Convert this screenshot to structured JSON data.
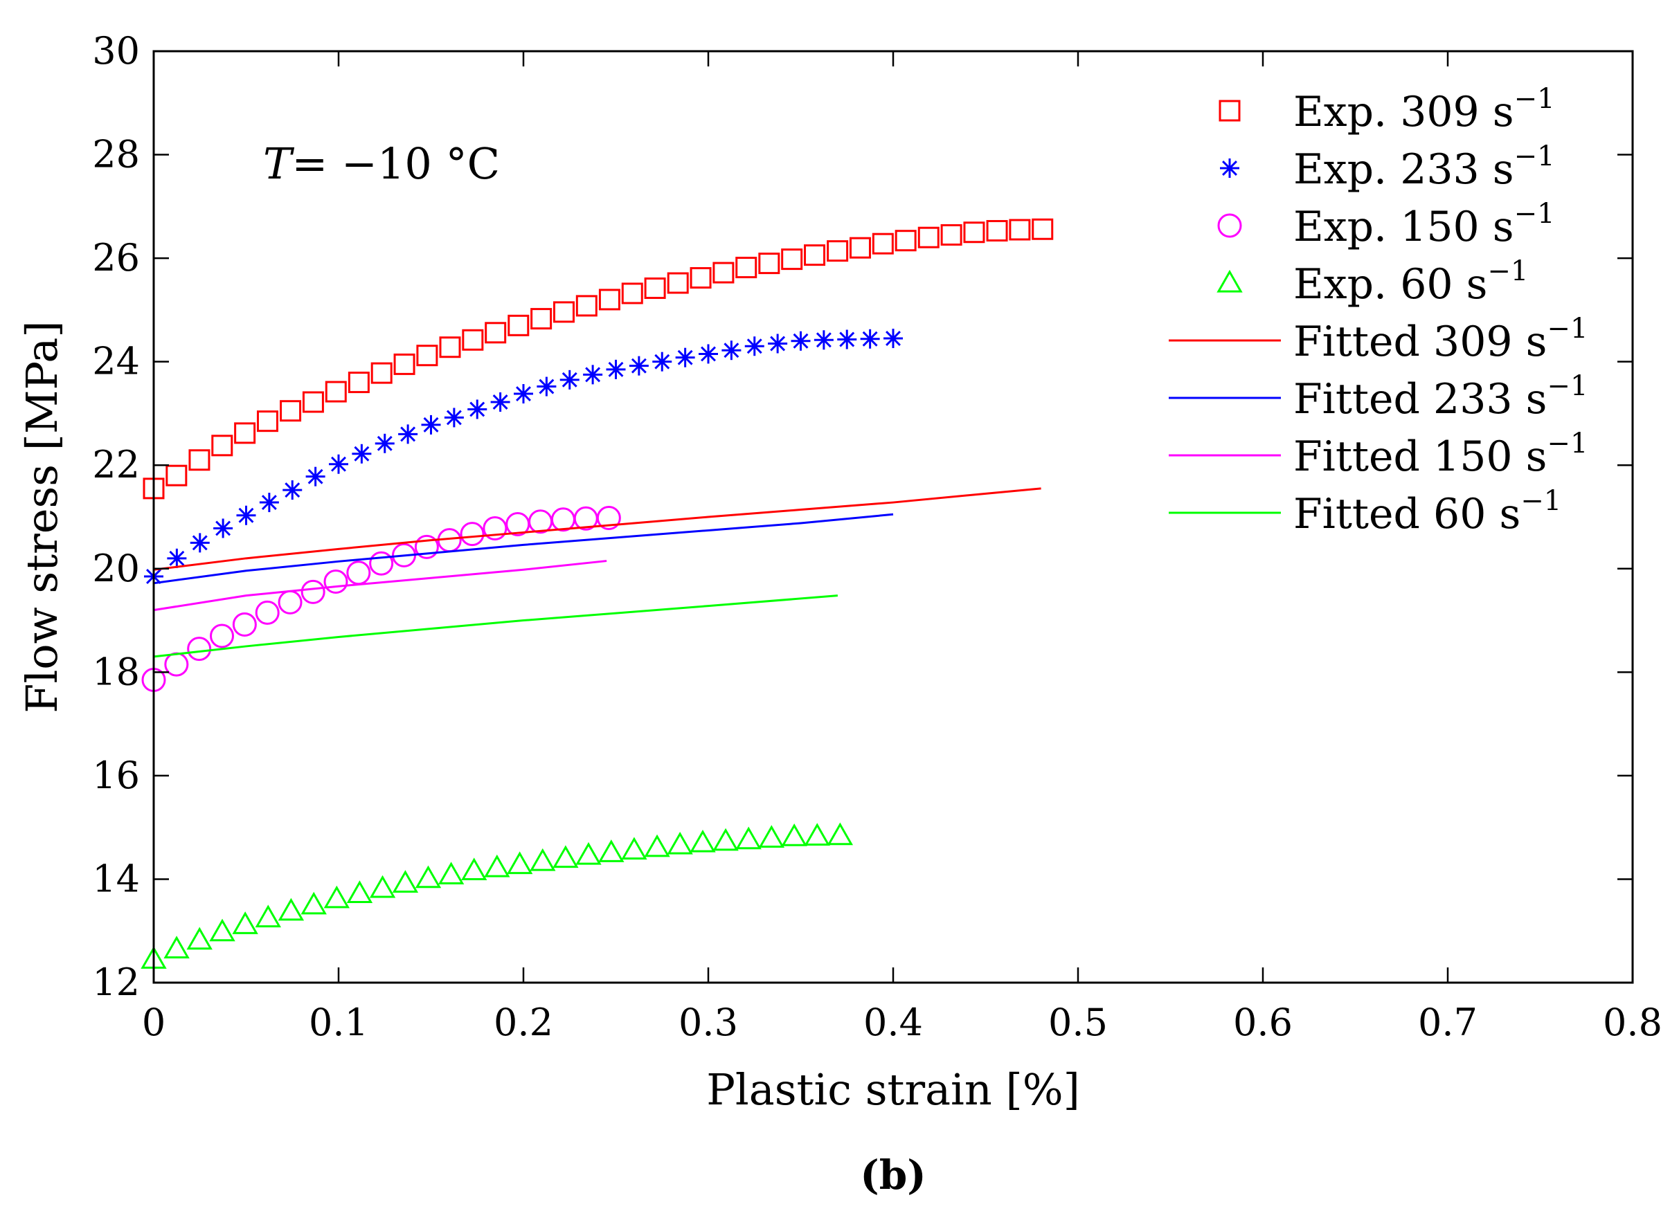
{
  "chart_data": {
    "type": "line",
    "title": "",
    "annotation": {
      "var": "T",
      "rest": "= −10 °C"
    },
    "caption": "(b)",
    "xlabel": "Plastic strain [%]",
    "ylabel": "Flow stress [MPa]",
    "xlim": [
      0,
      0.8
    ],
    "ylim": [
      12,
      30
    ],
    "xticks": [
      0,
      0.1,
      0.2,
      0.3,
      0.4,
      0.5,
      0.6,
      0.7,
      0.8
    ],
    "xtick_labels": [
      "0",
      "0.1",
      "0.2",
      "0.3",
      "0.4",
      "0.5",
      "0.6",
      "0.7",
      "0.8"
    ],
    "yticks": [
      12,
      14,
      16,
      18,
      20,
      22,
      24,
      26,
      28,
      30
    ],
    "ytick_labels": [
      "12",
      "14",
      "16",
      "18",
      "20",
      "22",
      "24",
      "26",
      "28",
      "30"
    ],
    "grid": false,
    "legend_position": "top-right",
    "series": [
      {
        "name": "Exp. 309 s−1",
        "legend_main": "Exp. 309 s",
        "legend_sup": "−1",
        "kind": "marker",
        "marker": "square",
        "color": "#ff0000",
        "x": [
          0,
          0.0123,
          0.0247,
          0.037,
          0.0493,
          0.0616,
          0.074,
          0.0863,
          0.0986,
          0.111,
          0.1233,
          0.1356,
          0.1479,
          0.1603,
          0.1726,
          0.1849,
          0.1973,
          0.2096,
          0.2219,
          0.2342,
          0.2466,
          0.2589,
          0.2712,
          0.2836,
          0.2959,
          0.3082,
          0.3205,
          0.3329,
          0.3452,
          0.3575,
          0.3699,
          0.3822,
          0.3945,
          0.4068,
          0.4192,
          0.4315,
          0.4438,
          0.4562,
          0.4685,
          0.4808
        ],
        "y": [
          21.55,
          21.8,
          22.1,
          22.38,
          22.62,
          22.85,
          23.05,
          23.22,
          23.42,
          23.6,
          23.78,
          23.95,
          24.12,
          24.28,
          24.42,
          24.56,
          24.7,
          24.83,
          24.96,
          25.08,
          25.2,
          25.32,
          25.42,
          25.52,
          25.62,
          25.72,
          25.82,
          25.9,
          25.98,
          26.06,
          26.14,
          26.2,
          26.28,
          26.34,
          26.4,
          26.45,
          26.5,
          26.53,
          26.55,
          26.56
        ]
      },
      {
        "name": "Exp. 233 s−1",
        "legend_main": "Exp. 233 s",
        "legend_sup": "−1",
        "kind": "marker",
        "marker": "asterisk",
        "color": "#0000ff",
        "x": [
          0,
          0.0125,
          0.025,
          0.0375,
          0.05,
          0.0625,
          0.075,
          0.0875,
          0.1,
          0.1125,
          0.125,
          0.1375,
          0.15,
          0.1625,
          0.175,
          0.1875,
          0.2,
          0.2125,
          0.225,
          0.2375,
          0.25,
          0.2625,
          0.275,
          0.2875,
          0.3,
          0.3125,
          0.325,
          0.3375,
          0.35,
          0.3625,
          0.375,
          0.3875,
          0.4
        ],
        "y": [
          19.85,
          20.2,
          20.5,
          20.78,
          21.03,
          21.28,
          21.52,
          21.78,
          22.02,
          22.22,
          22.42,
          22.6,
          22.78,
          22.92,
          23.08,
          23.22,
          23.38,
          23.52,
          23.65,
          23.75,
          23.85,
          23.92,
          24.0,
          24.08,
          24.15,
          24.22,
          24.3,
          24.35,
          24.4,
          24.42,
          24.43,
          24.44,
          24.45
        ]
      },
      {
        "name": "Exp. 150 s−1",
        "legend_main": "Exp. 150 s",
        "legend_sup": "−1",
        "kind": "marker",
        "marker": "circle",
        "color": "#ff00ff",
        "x": [
          0,
          0.0123,
          0.0246,
          0.0369,
          0.0492,
          0.0615,
          0.0738,
          0.0862,
          0.0985,
          0.1108,
          0.1231,
          0.1354,
          0.1477,
          0.16,
          0.1723,
          0.1846,
          0.1969,
          0.2092,
          0.2215,
          0.2338,
          0.2462
        ],
        "y": [
          17.85,
          18.15,
          18.45,
          18.7,
          18.92,
          19.15,
          19.35,
          19.55,
          19.75,
          19.92,
          20.1,
          20.26,
          20.42,
          20.55,
          20.67,
          20.78,
          20.86,
          20.91,
          20.95,
          20.97,
          20.98
        ]
      },
      {
        "name": "Exp. 60 s−1",
        "legend_main": "Exp. 60 s",
        "legend_sup": "−1",
        "kind": "marker",
        "marker": "triangle",
        "color": "#00ff00",
        "x": [
          0,
          0.0124,
          0.0248,
          0.0371,
          0.0495,
          0.0619,
          0.0743,
          0.0866,
          0.099,
          0.1114,
          0.1238,
          0.1361,
          0.1485,
          0.1609,
          0.1733,
          0.1857,
          0.198,
          0.2104,
          0.2228,
          0.2352,
          0.2475,
          0.2599,
          0.2723,
          0.2847,
          0.297,
          0.3094,
          0.3218,
          0.3342,
          0.3465,
          0.3589,
          0.3713
        ],
        "y": [
          12.45,
          12.65,
          12.82,
          12.98,
          13.12,
          13.25,
          13.38,
          13.5,
          13.62,
          13.72,
          13.82,
          13.92,
          14.01,
          14.08,
          14.16,
          14.22,
          14.28,
          14.34,
          14.4,
          14.46,
          14.51,
          14.56,
          14.61,
          14.66,
          14.7,
          14.73,
          14.76,
          14.79,
          14.82,
          14.83,
          14.84
        ]
      },
      {
        "name": "Fitted 309 s−1",
        "legend_main": "Fitted 309 s",
        "legend_sup": "−1",
        "kind": "line",
        "color": "#ff0000",
        "x": [
          0,
          0.05,
          0.1,
          0.15,
          0.2,
          0.25,
          0.3,
          0.35,
          0.4,
          0.45,
          0.48
        ],
        "y": [
          19.98,
          20.2,
          20.38,
          20.55,
          20.7,
          20.85,
          21.0,
          21.14,
          21.28,
          21.45,
          21.55
        ]
      },
      {
        "name": "Fitted 233 s−1",
        "legend_main": "Fitted  233 s",
        "legend_sup": "−1",
        "kind": "line",
        "color": "#0000ff",
        "x": [
          0,
          0.05,
          0.1,
          0.15,
          0.2,
          0.25,
          0.3,
          0.35,
          0.4
        ],
        "y": [
          19.72,
          19.96,
          20.14,
          20.3,
          20.46,
          20.6,
          20.74,
          20.88,
          21.05
        ]
      },
      {
        "name": "Fitted 150 s−1",
        "legend_main": "Fitted 150 s",
        "legend_sup": "−1",
        "kind": "line",
        "color": "#ff00ff",
        "x": [
          0,
          0.05,
          0.1,
          0.15,
          0.2,
          0.245
        ],
        "y": [
          19.2,
          19.48,
          19.66,
          19.82,
          19.98,
          20.15
        ]
      },
      {
        "name": "Fitted 60 s−1",
        "legend_main": "Fitted 60 s",
        "legend_sup": "−1",
        "kind": "line",
        "color": "#00ff00",
        "x": [
          0,
          0.05,
          0.1,
          0.15,
          0.2,
          0.25,
          0.3,
          0.37
        ],
        "y": [
          18.3,
          18.5,
          18.68,
          18.84,
          19.0,
          19.14,
          19.28,
          19.48
        ]
      }
    ]
  }
}
